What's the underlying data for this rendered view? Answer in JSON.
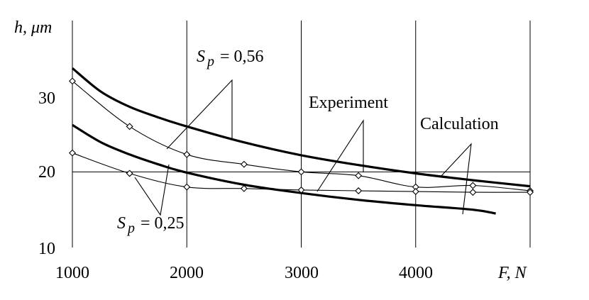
{
  "chart_data": {
    "type": "line",
    "xlabel": "F, N",
    "ylabel": "h, μm",
    "xlim": [
      1000,
      5000
    ],
    "ylim": [
      10,
      40
    ],
    "x_ticks": [
      "1000",
      "2000",
      "3000",
      "4000"
    ],
    "y_ticks": [
      "10",
      "20",
      "30"
    ],
    "grid": true,
    "legend": "none",
    "annotations": {
      "sp_high": "0,56",
      "sp_low": "0,25",
      "sp_symbol": "S",
      "sp_subscript": "p",
      "experiment": "Experiment",
      "calculation": "Calculation"
    },
    "series": [
      {
        "kind": "calculation",
        "sp": "0,56",
        "x": [
          1000,
          1250,
          1500,
          1750,
          2000,
          2500,
          3000,
          3500,
          4000,
          4500,
          5000
        ],
        "values": [
          33.7,
          30.6,
          28.6,
          27.2,
          26.0,
          23.9,
          22.2,
          20.9,
          19.8,
          18.9,
          18.1
        ]
      },
      {
        "kind": "calculation",
        "sp": "0,25",
        "x": [
          1000,
          1250,
          1500,
          1750,
          2000,
          2500,
          3000,
          3500,
          4000,
          4500,
          4700
        ],
        "values": [
          26.2,
          23.9,
          22.3,
          21.0,
          19.9,
          18.3,
          17.2,
          16.3,
          15.6,
          15.0,
          14.5
        ]
      },
      {
        "kind": "experiment",
        "sp": "0,56",
        "x": [
          1000,
          1500,
          2000,
          2500,
          3000,
          3500,
          4000,
          4500,
          5000
        ],
        "values": [
          32.0,
          26.0,
          22.3,
          21.0,
          20.0,
          19.5,
          18.0,
          18.2,
          17.5
        ]
      },
      {
        "kind": "experiment",
        "sp": "0,25",
        "x": [
          1000,
          1500,
          2000,
          2500,
          3000,
          3500,
          4000,
          4500,
          5000
        ],
        "values": [
          22.5,
          19.8,
          18.0,
          17.8,
          17.6,
          17.5,
          17.4,
          17.3,
          17.3
        ]
      }
    ]
  }
}
